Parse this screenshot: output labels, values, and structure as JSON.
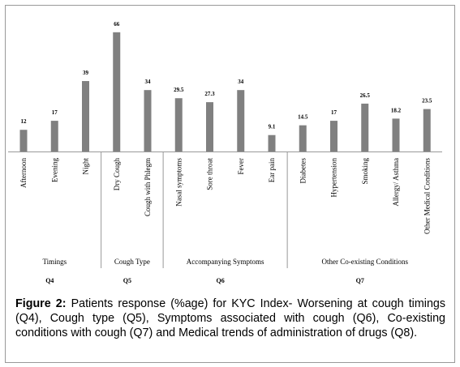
{
  "chart_data": {
    "type": "bar",
    "color": "#808080",
    "groups": [
      {
        "label": "Timings",
        "question": "Q4",
        "categories": [
          "Afternoon",
          "Evening",
          "Night"
        ],
        "values": [
          12,
          17,
          39
        ]
      },
      {
        "label": "Cough Type",
        "question": "Q5",
        "categories": [
          "Dry Cough",
          "Cough with Phlegm"
        ],
        "values": [
          66,
          34
        ]
      },
      {
        "label": "Accompanying Symptoms",
        "question": "Q6",
        "categories": [
          "Nasal symptoms",
          "Sore throat",
          "Fever",
          "Ear pain"
        ],
        "values": [
          29.5,
          27.3,
          34,
          9.1
        ]
      },
      {
        "label": "Other Co-existing Conditions",
        "question": "Q7",
        "categories": [
          "Diabetes",
          "Hypertension",
          "Smoking",
          "Allergy/ Asthma",
          "Other Medical Conditions"
        ],
        "values": [
          14.5,
          17,
          26.5,
          18.2,
          23.5
        ]
      }
    ]
  },
  "caption": {
    "label": "Figure 2:",
    "text": "Patients response (%age) for KYC Index- Worsening at cough timings (Q4), Cough type (Q5), Symptoms associated with cough (Q6), Co-existing conditions with cough (Q7) and Medical trends of administration of drugs (Q8)."
  }
}
